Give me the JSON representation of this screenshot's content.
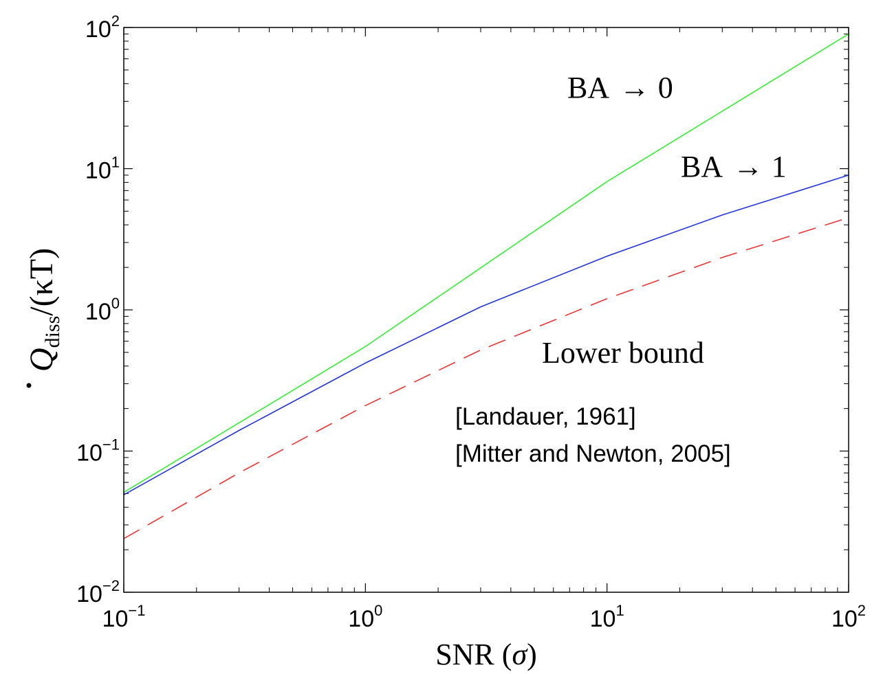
{
  "chart_data": {
    "type": "line",
    "scale": {
      "x": "log",
      "y": "log"
    },
    "xlim": [
      0.1,
      100
    ],
    "ylim": [
      0.01,
      100
    ],
    "xlabel": {
      "prefix": "SNR (",
      "symbol": "σ",
      "suffix": ")"
    },
    "ylabel": {
      "base": "Q",
      "subscript": "diss",
      "tail": "/(κT)"
    },
    "x_ticks": [
      {
        "value": 0.1,
        "base": "10",
        "exp": "−1"
      },
      {
        "value": 1,
        "base": "10",
        "exp": "0"
      },
      {
        "value": 10,
        "base": "10",
        "exp": "1"
      },
      {
        "value": 100,
        "base": "10",
        "exp": "2"
      }
    ],
    "y_ticks": [
      {
        "value": 0.01,
        "base": "10",
        "exp": "−2"
      },
      {
        "value": 0.1,
        "base": "10",
        "exp": "−1"
      },
      {
        "value": 1,
        "base": "10",
        "exp": "0"
      },
      {
        "value": 10,
        "base": "10",
        "exp": "1"
      },
      {
        "value": 100,
        "base": "10",
        "exp": "2"
      }
    ],
    "series": [
      {
        "color": "#33ee33",
        "dash": "solid",
        "x": [
          0.1,
          1,
          10,
          100
        ],
        "y": [
          0.051,
          0.55,
          8.1,
          90
        ]
      },
      {
        "color": "#2233dd",
        "dash": "solid",
        "x": [
          0.1,
          0.3,
          1,
          3,
          10,
          30,
          100
        ],
        "y": [
          0.049,
          0.14,
          0.42,
          1.05,
          2.4,
          4.7,
          9.0
        ]
      },
      {
        "color": "#ee3333",
        "dash": "dashed",
        "x": [
          0.1,
          0.3,
          1,
          3,
          10,
          30,
          100
        ],
        "y": [
          0.024,
          0.07,
          0.21,
          0.52,
          1.2,
          2.35,
          4.5
        ]
      }
    ],
    "annotations": {
      "ba0": {
        "prefix": "BA ",
        "arrow": "→",
        "value": "0"
      },
      "ba1": {
        "prefix": "BA ",
        "arrow": "→",
        "value": "1"
      },
      "lower_bound": "Lower bound",
      "ref1": "[Landauer, 1961]",
      "ref2": "[Mitter and Newton, 2005]"
    }
  }
}
